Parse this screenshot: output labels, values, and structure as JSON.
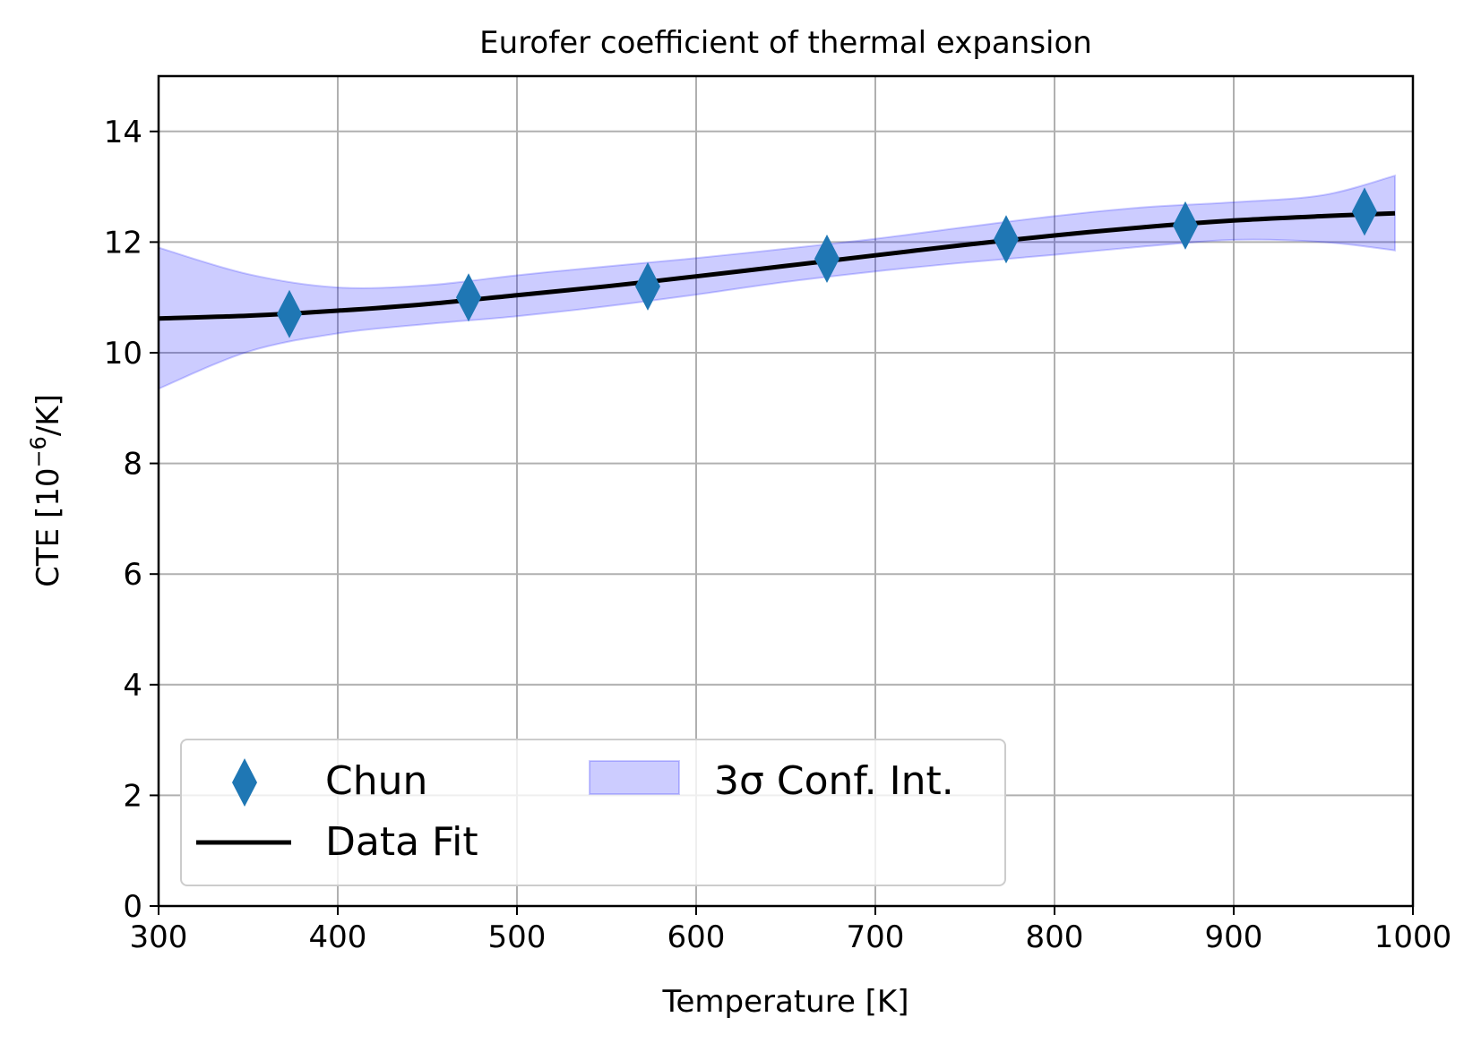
{
  "chart_data": {
    "type": "line",
    "title": "Eurofer coefficient of thermal expansion",
    "xlabel": "Temperature [K]",
    "ylabel_main": "CTE [10",
    "ylabel_sup": "−6",
    "ylabel_tail": "/K]",
    "xlim": [
      300,
      1000
    ],
    "ylim": [
      0,
      15
    ],
    "xticks": [
      "300",
      "400",
      "500",
      "600",
      "700",
      "800",
      "900",
      "1000"
    ],
    "yticks": [
      "0",
      "2",
      "4",
      "6",
      "8",
      "10",
      "12",
      "14"
    ],
    "grid": true,
    "legend_position": "lower-left",
    "legend": {
      "chun": "Chun",
      "fit": "Data Fit",
      "band": "3σ Conf. Int."
    },
    "series": [
      {
        "name": "Chun",
        "kind": "scatter",
        "marker": "thin-diamond",
        "color": "#1f77b4",
        "x": [
          373,
          473,
          573,
          673,
          773,
          873,
          973
        ],
        "y": [
          10.7,
          11.0,
          11.2,
          11.7,
          12.05,
          12.3,
          12.55
        ]
      },
      {
        "name": "Data Fit",
        "kind": "line",
        "color": "#000000",
        "x": [
          300,
          350,
          400,
          450,
          500,
          550,
          600,
          650,
          700,
          750,
          800,
          850,
          900,
          950,
          990
        ],
        "y": [
          10.62,
          10.67,
          10.76,
          10.88,
          11.04,
          11.2,
          11.38,
          11.57,
          11.76,
          11.95,
          12.12,
          12.27,
          12.39,
          12.47,
          12.52
        ]
      },
      {
        "name": "3σ Conf. Int.",
        "kind": "band",
        "color": "#0000ff",
        "x": [
          300,
          350,
          400,
          450,
          500,
          550,
          600,
          650,
          700,
          750,
          800,
          850,
          900,
          950,
          990
        ],
        "upper": [
          11.9,
          11.42,
          11.18,
          11.22,
          11.4,
          11.56,
          11.71,
          11.88,
          12.06,
          12.27,
          12.47,
          12.63,
          12.72,
          12.85,
          13.2
        ],
        "lower": [
          9.35,
          10.02,
          10.35,
          10.52,
          10.66,
          10.84,
          11.05,
          11.28,
          11.47,
          11.63,
          11.77,
          11.92,
          12.04,
          12.0,
          11.85
        ]
      }
    ]
  }
}
